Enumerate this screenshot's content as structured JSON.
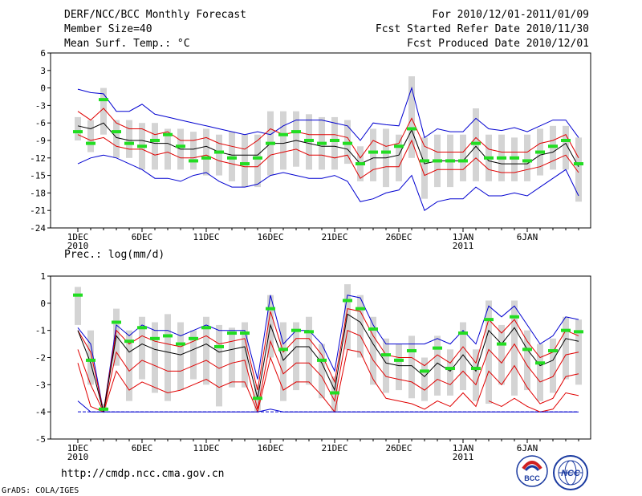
{
  "header": {
    "title": "DERF/NCC/BCC Monthly Forecast",
    "member_size": "Member Size=40",
    "variable": "Mean Surf. Temp.: °C",
    "period": "For 2010/12/01-2011/01/09",
    "fcst_started": "Fcst Started Refer Date 2010/11/30",
    "fcst_produced": "Fcst Produced Date 2010/12/01"
  },
  "precip_label": "Prec.: log(mm/d)",
  "url": "http://cmdp.ncc.cma.gov.cn",
  "credit": "GrADS: COLA/IGES",
  "logos": [
    "BCC",
    "NCC"
  ],
  "colors": {
    "outer": "#0000d0",
    "inner": "#e00000",
    "median": "#000000",
    "obs": "#22dd22",
    "box": "#d4d4d4"
  },
  "chart_data": [
    {
      "type": "line",
      "title": "Mean Surf. Temp.: °C",
      "xlabel": "",
      "ylabel": "°C",
      "x_ticks": [
        "1DEC\n2010",
        "6DEC",
        "11DEC",
        "16DEC",
        "21DEC",
        "26DEC",
        "1JAN\n2011",
        "6JAN"
      ],
      "ylim": [
        -24,
        6
      ],
      "y_ticks": [
        -24,
        -21,
        -18,
        -15,
        -12,
        -9,
        -6,
        -3,
        0,
        3,
        6
      ],
      "days": 40,
      "series": [
        {
          "name": "max",
          "values": [
            -0.2,
            -0.8,
            -1,
            -4,
            -4,
            -2.8,
            -4.5,
            -5,
            -5.5,
            -6,
            -6.5,
            -7,
            -7.5,
            -8,
            -7.5,
            -8,
            -6.5,
            -5.5,
            -5.5,
            -5.5,
            -6,
            -6.5,
            -9,
            -6,
            -6.3,
            -6.5,
            0,
            -8.5,
            -7,
            -7.5,
            -7.5,
            -5.2,
            -7,
            -7.3,
            -6.8,
            -7.5,
            -6.5,
            -5.5,
            -5.5,
            -8.5
          ]
        },
        {
          "name": "upper",
          "values": [
            -4,
            -5.5,
            -3.5,
            -6,
            -7,
            -7,
            -8,
            -7.5,
            -9,
            -9,
            -8.5,
            -9.5,
            -10,
            -10.5,
            -9,
            -7,
            -8,
            -7.5,
            -8,
            -8,
            -8,
            -8.5,
            -12,
            -9,
            -10,
            -9.5,
            -5.2,
            -10,
            -11,
            -11,
            -11,
            -8.5,
            -10.5,
            -11,
            -11,
            -11,
            -9.5,
            -9,
            -8,
            -12
          ]
        },
        {
          "name": "median",
          "values": [
            -6.5,
            -7,
            -6,
            -8.5,
            -9,
            -9,
            -9.5,
            -9.5,
            -10.5,
            -10.5,
            -10,
            -11,
            -11.5,
            -11.5,
            -11.5,
            -9.5,
            -9.5,
            -9,
            -9.5,
            -10,
            -10,
            -10.5,
            -13,
            -12,
            -12,
            -11.5,
            -7.2,
            -13,
            -12.5,
            -12.5,
            -12.5,
            -10,
            -12.5,
            -13,
            -13,
            -13,
            -11.5,
            -11,
            -9.5,
            -13.5
          ]
        },
        {
          "name": "lower",
          "values": [
            -8,
            -9,
            -8.5,
            -10,
            -10.5,
            -10.5,
            -11.5,
            -11,
            -12,
            -12,
            -11.5,
            -12.5,
            -13,
            -13.5,
            -13.5,
            -11.5,
            -11,
            -10.5,
            -11.5,
            -11.5,
            -12,
            -11.5,
            -15.5,
            -14,
            -13.5,
            -13.5,
            -9,
            -15,
            -14,
            -14,
            -14,
            -12,
            -14,
            -14.5,
            -14.5,
            -14,
            -13.5,
            -12.5,
            -11.5,
            -14.5
          ]
        },
        {
          "name": "min",
          "values": [
            -13,
            -12,
            -11.5,
            -12,
            -13,
            -14,
            -15.5,
            -15.5,
            -16,
            -15,
            -14.5,
            -16,
            -17,
            -17,
            -16.5,
            -15,
            -14.5,
            -15,
            -15.5,
            -15.5,
            -15,
            -16,
            -19.5,
            -19,
            -18,
            -17.5,
            -15,
            -21,
            -19.5,
            -19,
            -19,
            -17,
            -18.5,
            -18.5,
            -18,
            -18.5,
            -17,
            -15.5,
            -14,
            -18.5
          ]
        },
        {
          "name": "observed",
          "values": [
            -7.5,
            -9.5,
            -2,
            -7.5,
            -9.5,
            -10,
            -9,
            -8,
            -10,
            -12.5,
            -12,
            -11,
            -12,
            -13,
            -12,
            -9.5,
            -8,
            -7.5,
            -9,
            -9.5,
            -9,
            -9.5,
            -13,
            -11,
            -11,
            -10,
            -7,
            -12.5,
            -12.5,
            -12.5,
            -12.5,
            -9.5,
            -12,
            -12,
            -12,
            -12.5,
            -11,
            -10,
            -9,
            -13
          ]
        },
        {
          "name": "box_top",
          "values": [
            -5,
            -5.5,
            0,
            -5.5,
            -5.5,
            -6,
            -6,
            -7,
            -7,
            -7.5,
            -7,
            -8,
            -7.5,
            -8,
            -8,
            -4,
            -4,
            -4,
            -4.5,
            -5,
            -5,
            -5.5,
            -10,
            -7,
            -7,
            -8,
            2,
            -8.5,
            -8,
            -8,
            -8,
            -3.5,
            -8,
            -8,
            -8.5,
            -8,
            -7,
            -6.5,
            -6.5,
            -8.5
          ]
        },
        {
          "name": "box_bottom",
          "values": [
            -9,
            -11,
            -8,
            -12,
            -12,
            -14,
            -14,
            -14,
            -14,
            -14,
            -15,
            -15,
            -16,
            -17,
            -17,
            -15,
            -14,
            -13.5,
            -14,
            -14,
            -14,
            -13,
            -16,
            -16,
            -17,
            -16,
            -12,
            -19,
            -17,
            -17,
            -16,
            -16,
            -16,
            -16,
            -16,
            -16,
            -15,
            -14,
            -14,
            -19.5
          ]
        }
      ]
    },
    {
      "type": "line",
      "title": "Prec.: log(mm/d)",
      "xlabel": "",
      "ylabel": "log(mm/d)",
      "x_ticks": [
        "1DEC\n2010",
        "6DEC",
        "11DEC",
        "16DEC",
        "21DEC",
        "26DEC",
        "1JAN\n2011",
        "6JAN"
      ],
      "ylim": [
        -5,
        1
      ],
      "y_ticks": [
        -5,
        -4,
        -3,
        -2,
        -1,
        0,
        1
      ],
      "days": 40,
      "series": [
        {
          "name": "max",
          "values": [
            -0.9,
            -1.5,
            -4,
            -0.8,
            -1.2,
            -0.8,
            -1,
            -1,
            -1.2,
            -1,
            -0.8,
            -1,
            -1,
            -1,
            -2.8,
            0.3,
            -1.5,
            -1,
            -1,
            -1.5,
            -2.5,
            0.3,
            0.2,
            -0.8,
            -1.5,
            -1.5,
            -1.5,
            -1.5,
            -1.3,
            -1.5,
            -1,
            -1.5,
            -0.1,
            -0.5,
            -0.1,
            -0.8,
            -1.5,
            -1.2,
            -0.5,
            -0.6
          ]
        },
        {
          "name": "upper",
          "values": [
            -1,
            -1.8,
            -4,
            -1,
            -1.5,
            -1.2,
            -1.4,
            -1.5,
            -1.6,
            -1.4,
            -1.2,
            -1.5,
            -1.4,
            -1.3,
            -3.2,
            -0.3,
            -1.8,
            -1.3,
            -1.3,
            -1.9,
            -2.9,
            -0.2,
            -0.3,
            -1.2,
            -1.9,
            -2,
            -2,
            -2.3,
            -1.9,
            -2.2,
            -1.6,
            -2.2,
            -0.6,
            -1.1,
            -0.6,
            -1.4,
            -2,
            -1.8,
            -1,
            -1.2
          ]
        },
        {
          "name": "median",
          "values": [
            -1,
            -2.2,
            -4,
            -1.2,
            -1.8,
            -1.5,
            -1.7,
            -1.8,
            -1.9,
            -1.7,
            -1.5,
            -1.8,
            -1.7,
            -1.6,
            -3.5,
            -0.8,
            -2.1,
            -1.6,
            -1.6,
            -2.2,
            -3.2,
            -0.4,
            -0.7,
            -1.5,
            -2.2,
            -2.3,
            -2.3,
            -2.7,
            -2.2,
            -2.5,
            -1.9,
            -2.5,
            -1,
            -1.5,
            -0.9,
            -1.7,
            -2.3,
            -2.1,
            -1.3,
            -1.4
          ]
        },
        {
          "name": "lower",
          "values": [
            -1.7,
            -3,
            -4,
            -1.8,
            -2.5,
            -2.1,
            -2.3,
            -2.5,
            -2.5,
            -2.3,
            -2.1,
            -2.4,
            -2.2,
            -2.1,
            -3.9,
            -1.4,
            -2.6,
            -2.2,
            -2.2,
            -2.7,
            -3.6,
            -1,
            -1.2,
            -2.1,
            -2.7,
            -2.8,
            -2.9,
            -3.2,
            -2.8,
            -3,
            -2.5,
            -3,
            -1.7,
            -2.2,
            -1.5,
            -2.3,
            -2.9,
            -2.7,
            -1.9,
            -1.8
          ]
        },
        {
          "name": "lower2",
          "values": [
            -2.2,
            -3.8,
            -4,
            -2.5,
            -3.2,
            -2.9,
            -3.1,
            -3.3,
            -3.2,
            -3,
            -2.8,
            -3.1,
            -2.9,
            -2.9,
            -4,
            -2,
            -3.2,
            -2.9,
            -2.9,
            -3.4,
            -4,
            -1.7,
            -1.8,
            -2.8,
            -3.5,
            -3.6,
            -3.7,
            -3.9,
            -3.6,
            -3.8,
            -3.3,
            -3.8,
            -2.5,
            -3,
            -2.3,
            -3.1,
            -3.7,
            -3.5,
            -2.7,
            -2.6
          ]
        },
        {
          "name": "min",
          "values": [
            -3.6,
            -4,
            -4,
            -4,
            -4,
            -4,
            -4,
            -4,
            -4,
            -4,
            -4,
            -4,
            -4,
            -4,
            -4,
            -3.9,
            -4,
            -4,
            -4,
            -4,
            -4,
            -4,
            -4,
            -4,
            -4,
            -4,
            -4,
            -4,
            -4,
            -4,
            -4,
            -4,
            -4,
            -4,
            -4,
            -4,
            -4,
            -4,
            -4,
            -4
          ]
        },
        {
          "name": "extra_low",
          "values": [
            null,
            null,
            null,
            null,
            null,
            null,
            null,
            null,
            null,
            null,
            null,
            null,
            null,
            null,
            null,
            null,
            null,
            null,
            null,
            null,
            null,
            null,
            null,
            null,
            null,
            null,
            null,
            null,
            null,
            null,
            null,
            null,
            -3.6,
            -3.8,
            -3.5,
            -3.8,
            -4,
            -3.9,
            -3.3,
            -3.4
          ]
        },
        {
          "name": "observed",
          "values": [
            0.3,
            -2.1,
            -3.9,
            -0.7,
            -1.4,
            -0.9,
            -1.3,
            -1.2,
            -1.5,
            -1.3,
            -0.9,
            -1.6,
            -1.1,
            -1.1,
            -3.5,
            -0.2,
            -1.7,
            -1,
            -1.05,
            -2.1,
            -3.3,
            0.1,
            -0.2,
            -0.95,
            -1.9,
            -2.1,
            -1.75,
            -2.5,
            -1.65,
            -2.4,
            -1.1,
            -2.4,
            -0.6,
            -1.5,
            -0.5,
            -1.7,
            -2.2,
            -1.75,
            -1,
            -1.05
          ]
        },
        {
          "name": "box_top",
          "values": [
            0.6,
            -1,
            -3.7,
            -0.2,
            -1,
            -0.5,
            -0.7,
            -0.4,
            -0.7,
            -1,
            -0.5,
            -0.8,
            -0.9,
            -0.7,
            -3,
            0.3,
            -0.7,
            -0.7,
            -0.5,
            -1.5,
            -2.7,
            0.7,
            0.3,
            -0.5,
            -1.3,
            -1.5,
            -1.2,
            -2,
            -1.2,
            -1.7,
            -0.7,
            -1.7,
            0.1,
            -0.8,
            0.1,
            -1,
            -1.5,
            -1.3,
            -0.5,
            -0.6
          ]
        },
        {
          "name": "box_bottom",
          "values": [
            -0.8,
            -3,
            -4,
            -2.3,
            -3.6,
            -2.8,
            -3.3,
            -3.6,
            -3.2,
            -2.8,
            -3,
            -3.8,
            -3.1,
            -3.1,
            -4,
            -2,
            -3.6,
            -3.2,
            -3,
            -3.5,
            -4,
            -1.7,
            -2,
            -3,
            -3.3,
            -3.2,
            -3.5,
            -3.6,
            -3.4,
            -3.4,
            -3.2,
            -3.6,
            -3.7,
            -3,
            -3.4,
            -3.2,
            -3.6,
            -3.3,
            -2.8,
            -3
          ]
        }
      ]
    }
  ]
}
